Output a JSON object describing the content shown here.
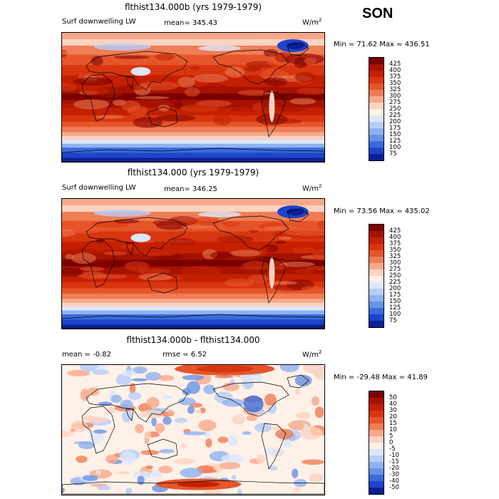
{
  "season": "SON",
  "panels": [
    {
      "title": "flthist134.000b (yrs 1979-1979)",
      "left_label": "Surf downwelling LW",
      "mean_label": "mean= 345.43",
      "units_main": "W/m",
      "units_sup": "2",
      "minmax": "Min =  71.62 Max = 436.51",
      "field": "total",
      "colorbar": {
        "labels": [
          "425",
          "400",
          "375",
          "350",
          "325",
          "300",
          "275",
          "250",
          "225",
          "200",
          "175",
          "150",
          "125",
          "100",
          "75"
        ],
        "colors": [
          "#7a0000",
          "#a51200",
          "#c42000",
          "#d8360f",
          "#e6552a",
          "#ef7d55",
          "#f6a98a",
          "#fbd3c1",
          "#fff1e8",
          "#dbe7fb",
          "#b6cdf6",
          "#8fb1ef",
          "#6892e6",
          "#3a6bdb",
          "#1d44c9",
          "#0b1f96"
        ]
      }
    },
    {
      "title": "flthist134.000 (yrs 1979-1979)",
      "left_label": "Surf downwelling LW",
      "mean_label": "mean= 346.25",
      "units_main": "W/m",
      "units_sup": "2",
      "minmax": "Min =  73.56 Max = 435.02",
      "field": "total",
      "colorbar": {
        "labels": [
          "425",
          "400",
          "375",
          "350",
          "325",
          "300",
          "275",
          "250",
          "225",
          "200",
          "175",
          "150",
          "125",
          "100",
          "75"
        ],
        "colors": [
          "#7a0000",
          "#a51200",
          "#c42000",
          "#d8360f",
          "#e6552a",
          "#ef7d55",
          "#f6a98a",
          "#fbd3c1",
          "#fff1e8",
          "#dbe7fb",
          "#b6cdf6",
          "#8fb1ef",
          "#6892e6",
          "#3a6bdb",
          "#1d44c9",
          "#0b1f96"
        ]
      }
    },
    {
      "title": "flthist134.000b - flthist134.000",
      "left_label": "mean =   -0.82",
      "mean_label": "rmse =    6.52",
      "units_main": "W/m",
      "units_sup": "2",
      "minmax": "Min = -29.48 Max =  41.89",
      "field": "diff",
      "colorbar": {
        "labels": [
          "50",
          "40",
          "30",
          "20",
          "15",
          "10",
          "5",
          "0",
          "-5",
          "-10",
          "-15",
          "-20",
          "-30",
          "-40",
          "-50"
        ],
        "colors": [
          "#7a0000",
          "#a51200",
          "#c42000",
          "#d8360f",
          "#e6552a",
          "#ef7d55",
          "#f6a98a",
          "#fbd3c1",
          "#fff1e8",
          "#dbe7fb",
          "#b6cdf6",
          "#8fb1ef",
          "#6892e6",
          "#3a6bdb",
          "#1d44c9",
          "#0b1f96"
        ]
      }
    }
  ]
}
